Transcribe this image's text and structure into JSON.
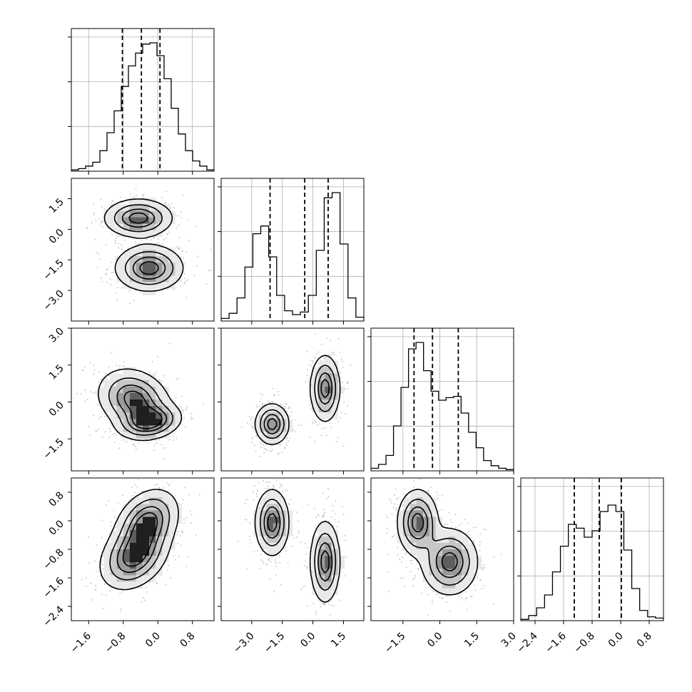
{
  "chart_data": {
    "type": "corner",
    "title": "",
    "variables": [
      {
        "range": [
          -2.0,
          1.3
        ],
        "ticks": [
          -1.6,
          -0.8,
          0.0,
          0.8
        ],
        "tick_labels": [
          "−1.6",
          "−0.8",
          "0.0",
          "0.8"
        ],
        "quantiles": [
          -0.82,
          -0.38,
          0.05
        ],
        "hist_counts": [
          0.01,
          0.02,
          0.04,
          0.07,
          0.16,
          0.3,
          0.47,
          0.66,
          0.82,
          0.92,
          0.99,
          1.0,
          0.9,
          0.72,
          0.49,
          0.29,
          0.16,
          0.08,
          0.04,
          0.01
        ]
      },
      {
        "range": [
          -4.5,
          2.5
        ],
        "ticks": [
          -3.0,
          -1.5,
          0.0,
          1.5
        ],
        "tick_labels": [
          "−3.0",
          "−1.5",
          "0.0",
          "1.5"
        ],
        "quantiles": [
          -2.1,
          -0.4,
          0.75
        ],
        "hist_counts": [
          0.02,
          0.06,
          0.18,
          0.42,
          0.68,
          0.74,
          0.5,
          0.2,
          0.08,
          0.05,
          0.07,
          0.2,
          0.55,
          0.96,
          1.0,
          0.6,
          0.18,
          0.03
        ]
      },
      {
        "range": [
          -2.8,
          3.0
        ],
        "ticks": [
          -1.5,
          0.0,
          1.5,
          3.0
        ],
        "tick_labels": [
          "−1.5",
          "0.0",
          "1.5",
          "3.0"
        ],
        "quantiles": [
          -1.05,
          -0.3,
          0.75
        ],
        "hist_counts": [
          0.02,
          0.05,
          0.12,
          0.35,
          0.65,
          0.95,
          1.0,
          0.78,
          0.62,
          0.55,
          0.57,
          0.58,
          0.45,
          0.3,
          0.18,
          0.08,
          0.04,
          0.02,
          0.01
        ]
      },
      {
        "range": [
          -2.8,
          1.2
        ],
        "ticks": [
          -2.4,
          -1.6,
          -0.8,
          0.0,
          0.8
        ],
        "tick_labels": [
          "−2.4",
          "−1.6",
          "−0.8",
          "0.0",
          "0.8"
        ],
        "quantiles": [
          -1.3,
          -0.6,
          0.02
        ],
        "hist_counts": [
          0.01,
          0.04,
          0.1,
          0.2,
          0.38,
          0.58,
          0.75,
          0.72,
          0.65,
          0.7,
          0.85,
          0.9,
          0.85,
          0.55,
          0.25,
          0.08,
          0.03,
          0.02
        ]
      }
    ],
    "pairs": [
      {
        "row": 1,
        "col": 0,
        "components": [
          {
            "mx": -0.45,
            "my": 0.55,
            "sx": 0.38,
            "sy": 0.45,
            "r": 0.0
          },
          {
            "mx": -0.2,
            "my": -1.9,
            "sx": 0.38,
            "sy": 0.55,
            "r": 0.0
          }
        ]
      },
      {
        "row": 2,
        "col": 0,
        "components": [
          {
            "mx": -0.2,
            "my": -0.8,
            "sx": 0.35,
            "sy": 0.35,
            "r": 0.2
          },
          {
            "mx": -0.55,
            "my": 0.1,
            "sx": 0.4,
            "sy": 0.6,
            "r": -0.2
          }
        ]
      },
      {
        "row": 2,
        "col": 1,
        "components": [
          {
            "mx": -2.0,
            "my": -0.9,
            "sx": 0.4,
            "sy": 0.4,
            "r": 0.0
          },
          {
            "mx": 0.6,
            "my": 0.55,
            "sx": 0.35,
            "sy": 0.65,
            "r": 0.0
          }
        ]
      },
      {
        "row": 3,
        "col": 0,
        "components": [
          {
            "mx": -0.25,
            "my": -0.05,
            "sx": 0.35,
            "sy": 0.45,
            "r": 0.3
          },
          {
            "mx": -0.55,
            "my": -1.0,
            "sx": 0.38,
            "sy": 0.45,
            "r": 0.3
          }
        ]
      },
      {
        "row": 3,
        "col": 1,
        "components": [
          {
            "mx": -2.0,
            "my": -0.05,
            "sx": 0.4,
            "sy": 0.45,
            "r": 0.0
          },
          {
            "mx": 0.6,
            "my": -1.15,
            "sx": 0.35,
            "sy": 0.55,
            "r": 0.0
          }
        ]
      },
      {
        "row": 3,
        "col": 2,
        "components": [
          {
            "mx": -0.9,
            "my": -0.05,
            "sx": 0.4,
            "sy": 0.45,
            "r": 0.0
          },
          {
            "mx": 0.4,
            "my": -1.15,
            "sx": 0.55,
            "sy": 0.45,
            "r": 0.0
          }
        ]
      }
    ],
    "contour_levels": [
      0.12,
      0.35,
      0.62,
      0.85
    ],
    "grid": true
  }
}
